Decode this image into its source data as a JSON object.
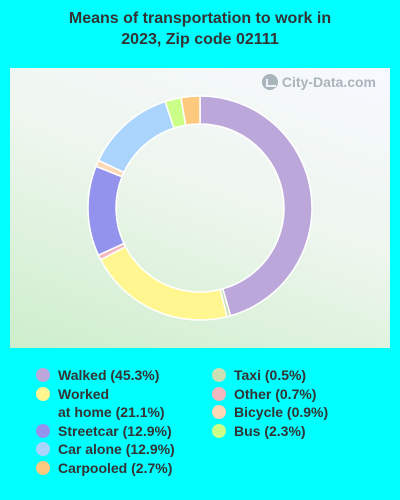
{
  "title_lines": [
    "Means of transportation to work in",
    "2023, Zip code 02111"
  ],
  "watermark": "City-Data.com",
  "chart_data": {
    "type": "pie",
    "donut": true,
    "title": "Means of transportation to work in 2023, Zip code 02111",
    "legend_placement": "bottom",
    "start_angle_deg": 0,
    "slices": [
      {
        "label": "Walked (45.3%)",
        "value": 45.3,
        "color": "#bca7da"
      },
      {
        "label": "Taxi (0.5%)",
        "value": 0.5,
        "color": "#c8e0b4"
      },
      {
        "label": "Worked\nat home (21.1%)",
        "value": 21.1,
        "color": "#fff68f"
      },
      {
        "label": "Other (0.7%)",
        "value": 0.7,
        "color": "#f2b8be"
      },
      {
        "label": "Streetcar (12.9%)",
        "value": 12.9,
        "color": "#9393ee"
      },
      {
        "label": "Bicycle (0.9%)",
        "value": 0.9,
        "color": "#fdd8b5"
      },
      {
        "label": "Car alone (12.9%)",
        "value": 12.9,
        "color": "#aad4fc"
      },
      {
        "label": "Bus (2.3%)",
        "value": 2.3,
        "color": "#ccff88"
      },
      {
        "label": "Carpooled (2.7%)",
        "value": 2.7,
        "color": "#fdc97e"
      }
    ],
    "legend_order": [
      [
        "Walked (45.3%)",
        "Worked\nat home (21.1%)",
        "Streetcar (12.9%)",
        "Car alone (12.9%)",
        "Carpooled (2.7%)"
      ],
      [
        "Taxi (0.5%)",
        "Other (0.7%)",
        "Bicycle (0.9%)",
        "Bus (2.3%)"
      ]
    ]
  }
}
